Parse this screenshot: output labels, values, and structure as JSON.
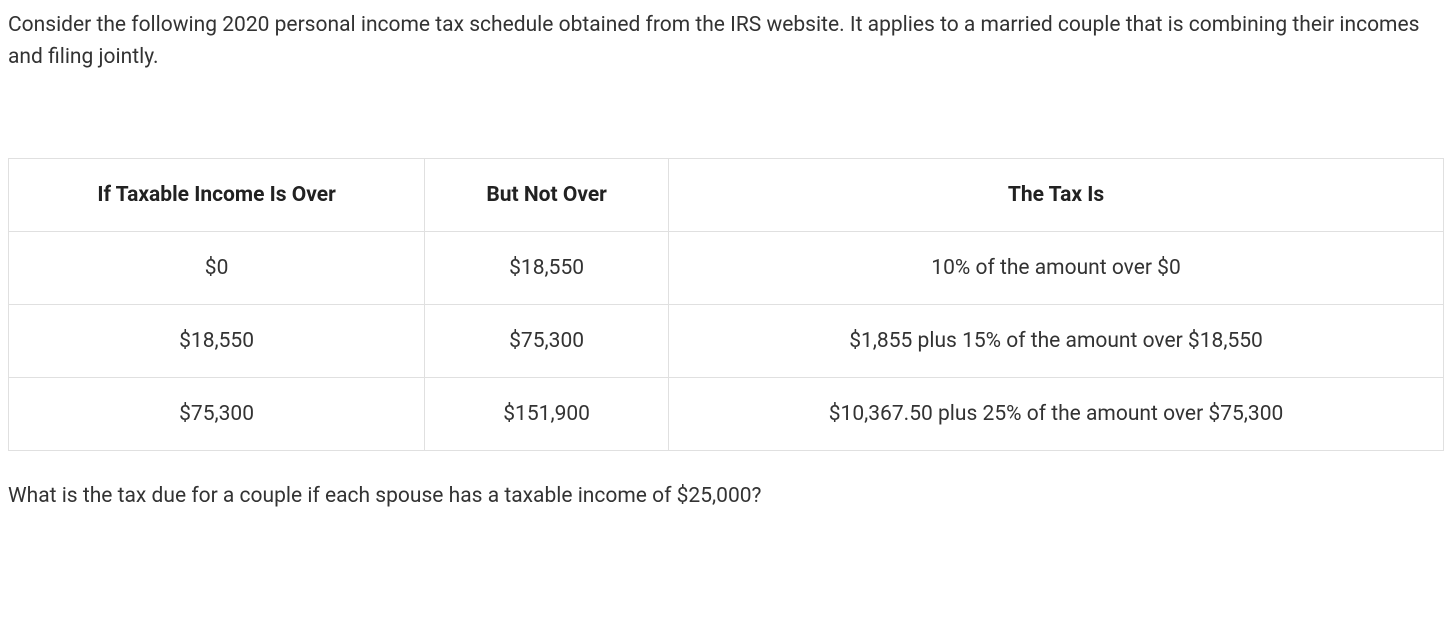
{
  "intro": "Consider the following 2020 personal income tax schedule obtained from the IRS website. It applies to a married couple that is combining their incomes and filing jointly.",
  "table": {
    "columns": [
      "If Taxable Income Is Over",
      "But Not Over",
      "The Tax Is"
    ],
    "rows": [
      [
        "$0",
        "$18,550",
        "10% of the amount over $0"
      ],
      [
        "$18,550",
        "$75,300",
        "$1,855 plus 15% of the amount over $18,550"
      ],
      [
        "$75,300",
        "$151,900",
        "$10,367.50 plus 25% of the amount over $75,300"
      ]
    ],
    "border_color": "#e0e0e0",
    "header_font_weight": 700,
    "cell_font_size": 21,
    "text_color": "#333333",
    "header_text_color": "#222222",
    "background_color": "#ffffff",
    "column_widths": [
      "29%",
      "17%",
      "54%"
    ],
    "text_align": "center"
  },
  "question": "What is the tax due for a couple if each spouse has a taxable income of $25,000?"
}
